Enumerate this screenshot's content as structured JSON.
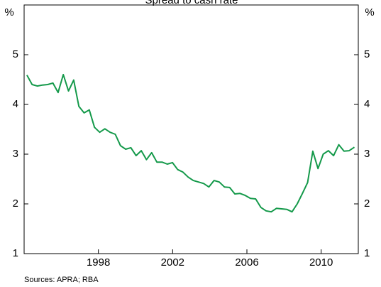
{
  "chart_data": {
    "type": "line",
    "title": "Spread to cash rate",
    "ylabel": "%",
    "source": "Sources: APRA; RBA",
    "x": [
      1994.15,
      1994.43,
      1994.71,
      1994.99,
      1995.27,
      1995.55,
      1995.83,
      1996.11,
      1996.39,
      1996.67,
      1996.95,
      1997.23,
      1997.51,
      1997.79,
      1998.07,
      1998.35,
      1998.63,
      1998.91,
      1999.19,
      1999.47,
      1999.75,
      2000.03,
      2000.31,
      2000.59,
      2000.87,
      2001.15,
      2001.43,
      2001.71,
      2001.99,
      2002.27,
      2002.55,
      2002.83,
      2003.11,
      2003.39,
      2003.67,
      2003.95,
      2004.23,
      2004.51,
      2004.79,
      2005.07,
      2005.35,
      2005.63,
      2005.91,
      2006.19,
      2006.47,
      2006.75,
      2007.03,
      2007.31,
      2007.59,
      2007.87,
      2008.15,
      2008.43,
      2008.71,
      2008.99,
      2009.27,
      2009.55,
      2009.83,
      2010.11,
      2010.39,
      2010.67,
      2010.95,
      2011.23,
      2011.51,
      2011.79
    ],
    "series": [
      {
        "color": "#14994a",
        "values": [
          4.59,
          4.4,
          4.37,
          4.39,
          4.4,
          4.43,
          4.24,
          4.6,
          4.27,
          4.49,
          3.96,
          3.83,
          3.89,
          3.54,
          3.44,
          3.51,
          3.44,
          3.4,
          3.17,
          3.1,
          3.13,
          2.97,
          3.07,
          2.89,
          3.03,
          2.84,
          2.84,
          2.8,
          2.83,
          2.69,
          2.64,
          2.54,
          2.47,
          2.44,
          2.41,
          2.34,
          2.47,
          2.44,
          2.34,
          2.33,
          2.2,
          2.21,
          2.17,
          2.11,
          2.1,
          1.93,
          1.86,
          1.84,
          1.91,
          1.9,
          1.89,
          1.84,
          2.0,
          2.21,
          2.43,
          3.06,
          2.71,
          3.0,
          3.07,
          2.97,
          3.19,
          3.06,
          3.07,
          3.14
        ]
      }
    ],
    "xlim": [
      1994,
      2012
    ],
    "xticks": [
      1998,
      2002,
      2006,
      2010
    ],
    "ylim": [
      1,
      6
    ],
    "yticks": [
      1,
      2,
      3,
      4,
      5
    ],
    "grid": false
  }
}
